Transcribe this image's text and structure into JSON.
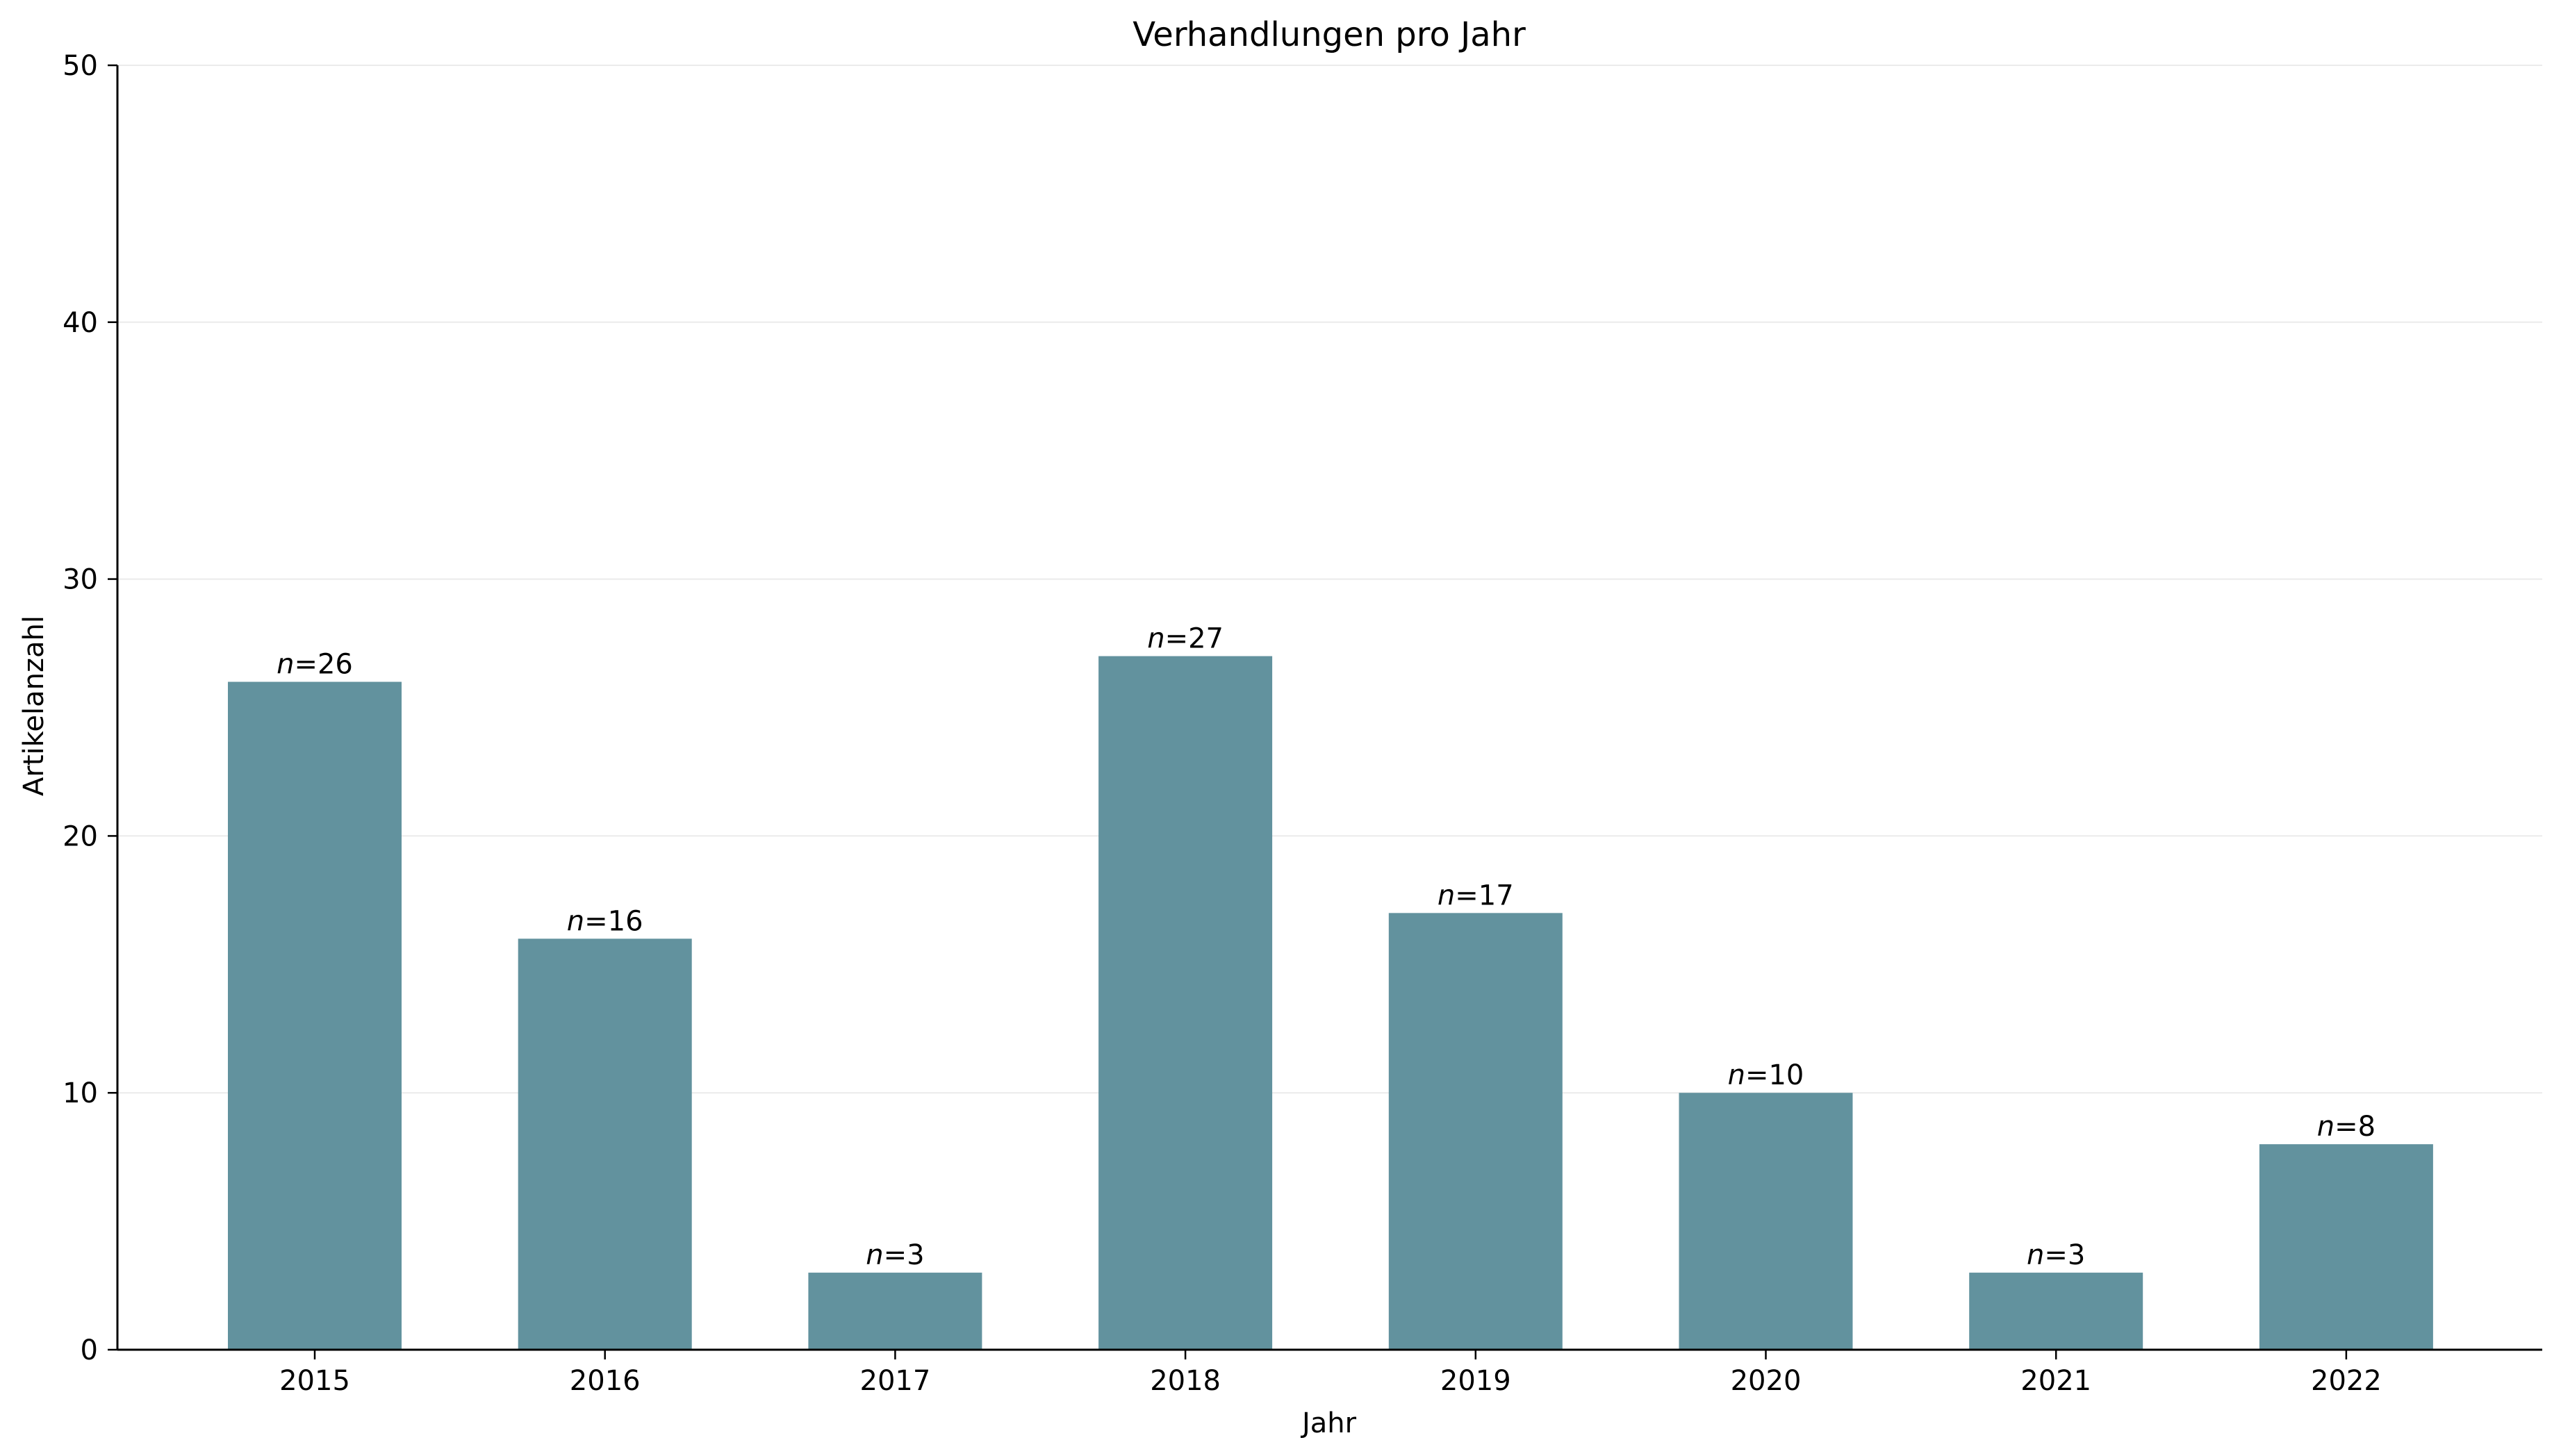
{
  "chart_data": {
    "type": "bar",
    "title": "Verhandlungen pro Jahr",
    "xlabel": "Jahr",
    "ylabel": "Artikelanzahl",
    "categories": [
      "2015",
      "2016",
      "2017",
      "2018",
      "2019",
      "2020",
      "2021",
      "2022"
    ],
    "values": [
      26,
      16,
      3,
      27,
      17,
      10,
      3,
      8
    ],
    "data_labels": [
      "n=26",
      "n=16",
      "n=3",
      "n=27",
      "n=17",
      "n=10",
      "n=3",
      "n=8"
    ],
    "ylim": [
      0,
      50
    ],
    "yticks": [
      "0",
      "10",
      "20",
      "30",
      "40",
      "50"
    ],
    "grid": "horizontal",
    "legend": "none",
    "colors": {
      "bar": "#62929e",
      "grid": "#ebebeb",
      "axis": "#000000"
    }
  }
}
